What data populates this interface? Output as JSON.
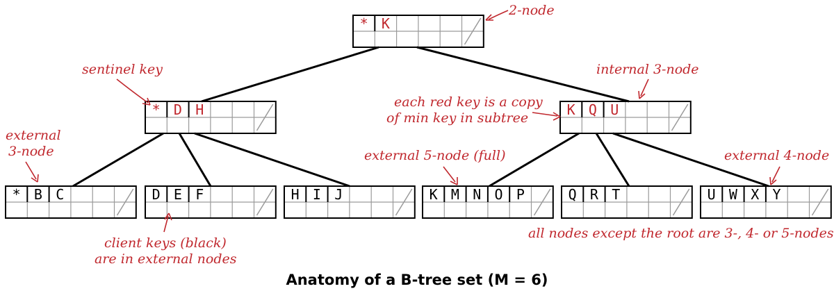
{
  "caption": "Anatomy of a B-tree set (M = 6)",
  "colors": {
    "annotation": "#c0272d",
    "edge": "#000000",
    "cell_grid": "#9a9a9a"
  },
  "nodes": [
    {
      "id": "root",
      "keys": [
        {
          "k": "*",
          "c": "red"
        },
        {
          "k": "K",
          "c": "red"
        }
      ]
    },
    {
      "id": "left-internal",
      "keys": [
        {
          "k": "*",
          "c": "red"
        },
        {
          "k": "D",
          "c": "red"
        },
        {
          "k": "H",
          "c": "red"
        }
      ]
    },
    {
      "id": "right-internal",
      "keys": [
        {
          "k": "K",
          "c": "red"
        },
        {
          "k": "Q",
          "c": "red"
        },
        {
          "k": "U",
          "c": "red"
        }
      ]
    },
    {
      "id": "leaf-1",
      "keys": [
        {
          "k": "*",
          "c": "black"
        },
        {
          "k": "B",
          "c": "black"
        },
        {
          "k": "C",
          "c": "black"
        }
      ]
    },
    {
      "id": "leaf-2",
      "keys": [
        {
          "k": "D",
          "c": "black"
        },
        {
          "k": "E",
          "c": "black"
        },
        {
          "k": "F",
          "c": "black"
        }
      ]
    },
    {
      "id": "leaf-3",
      "keys": [
        {
          "k": "H",
          "c": "black"
        },
        {
          "k": "I",
          "c": "black"
        },
        {
          "k": "J",
          "c": "black"
        }
      ]
    },
    {
      "id": "leaf-4",
      "keys": [
        {
          "k": "K",
          "c": "black"
        },
        {
          "k": "M",
          "c": "black"
        },
        {
          "k": "N",
          "c": "black"
        },
        {
          "k": "O",
          "c": "black"
        },
        {
          "k": "P",
          "c": "black"
        }
      ]
    },
    {
      "id": "leaf-5",
      "keys": [
        {
          "k": "Q",
          "c": "black"
        },
        {
          "k": "R",
          "c": "black"
        },
        {
          "k": "T",
          "c": "black"
        }
      ]
    },
    {
      "id": "leaf-6",
      "keys": [
        {
          "k": "U",
          "c": "black"
        },
        {
          "k": "W",
          "c": "black"
        },
        {
          "k": "X",
          "c": "black"
        },
        {
          "k": "Y",
          "c": "black"
        }
      ]
    }
  ],
  "edges": [
    [
      "root",
      "left-internal"
    ],
    [
      "root",
      "right-internal"
    ],
    [
      "left-internal",
      "leaf-1"
    ],
    [
      "left-internal",
      "leaf-2"
    ],
    [
      "left-internal",
      "leaf-3"
    ],
    [
      "right-internal",
      "leaf-4"
    ],
    [
      "right-internal",
      "leaf-5"
    ],
    [
      "right-internal",
      "leaf-6"
    ]
  ],
  "annotations": {
    "two_node": "2-node",
    "sentinel_key": "sentinel key",
    "internal_3_node": "internal 3-node",
    "red_key_copy": [
      "each red key is a copy",
      "of min key in subtree"
    ],
    "external_3_node": [
      "external",
      "3-node"
    ],
    "external_5_node": "external 5-node (full)",
    "external_4_node": "external 4-node",
    "client_keys": [
      "client keys (black)",
      "are in external nodes"
    ],
    "all_nodes": "all nodes except the root are 3-, 4- or 5-nodes"
  }
}
